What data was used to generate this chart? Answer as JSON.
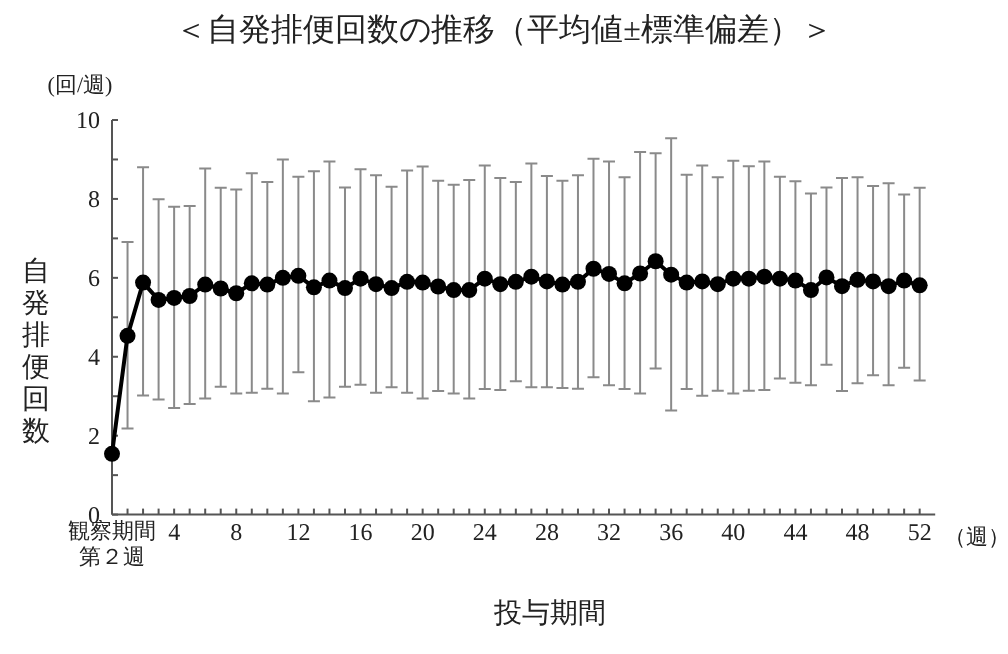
{
  "chart_data": {
    "type": "line",
    "title": "＜自発排便回数の推移（平均値±標準偏差）＞",
    "xlabel": "投与期間",
    "ylabel": "自発排便回数",
    "annotations": [
      "(回/週)",
      "（週）"
    ],
    "xlim": [
      0,
      53
    ],
    "xticks": [
      {
        "value": 0,
        "label": "観察期間第２週"
      },
      {
        "value": 1,
        "label": null
      },
      {
        "value": 2,
        "label": null
      },
      {
        "value": 3,
        "label": null
      },
      4,
      {
        "value": 5,
        "label": null
      },
      {
        "value": 6,
        "label": null
      },
      {
        "value": 7,
        "label": null
      },
      8,
      {
        "value": 9,
        "label": null
      },
      {
        "value": 10,
        "label": null
      },
      {
        "value": 11,
        "label": null
      },
      12,
      {
        "value": 13,
        "label": null
      },
      {
        "value": 14,
        "label": null
      },
      {
        "value": 15,
        "label": null
      },
      16,
      {
        "value": 17,
        "label": null
      },
      {
        "value": 18,
        "label": null
      },
      {
        "value": 19,
        "label": null
      },
      20,
      {
        "value": 21,
        "label": null
      },
      {
        "value": 22,
        "label": null
      },
      {
        "value": 23,
        "label": null
      },
      24,
      {
        "value": 25,
        "label": null
      },
      {
        "value": 26,
        "label": null
      },
      {
        "value": 27,
        "label": null
      },
      28,
      {
        "value": 29,
        "label": null
      },
      {
        "value": 30,
        "label": null
      },
      {
        "value": 31,
        "label": null
      },
      32,
      {
        "value": 33,
        "label": null
      },
      {
        "value": 34,
        "label": null
      },
      {
        "value": 35,
        "label": null
      },
      36,
      {
        "value": 37,
        "label": null
      },
      {
        "value": 38,
        "label": null
      },
      {
        "value": 39,
        "label": null
      },
      40,
      {
        "value": 41,
        "label": null
      },
      {
        "value": 42,
        "label": null
      },
      {
        "value": 43,
        "label": null
      },
      44,
      {
        "value": 45,
        "label": null
      },
      {
        "value": 46,
        "label": null
      },
      {
        "value": 47,
        "label": null
      },
      48,
      {
        "value": 49,
        "label": null
      },
      {
        "value": 50,
        "label": null
      },
      {
        "value": 51,
        "label": null
      },
      52
    ],
    "ylim": [
      0,
      10
    ],
    "yticks": [
      0,
      {
        "value": 1,
        "label": null
      },
      2,
      {
        "value": 3,
        "label": null
      },
      4,
      {
        "value": 5,
        "label": null
      },
      6,
      {
        "value": 7,
        "label": null
      },
      8,
      {
        "value": 9,
        "label": null
      },
      10
    ],
    "marker": "circle",
    "line_style": "solid",
    "x": [
      0,
      1,
      2,
      3,
      4,
      5,
      6,
      7,
      8,
      9,
      10,
      11,
      12,
      13,
      14,
      15,
      16,
      17,
      18,
      19,
      20,
      21,
      22,
      23,
      24,
      25,
      26,
      27,
      28,
      29,
      30,
      31,
      32,
      33,
      34,
      35,
      36,
      37,
      38,
      39,
      40,
      41,
      42,
      43,
      44,
      45,
      46,
      47,
      48,
      49,
      50,
      51,
      52
    ],
    "series": [
      {
        "color": "#000000",
        "values": [
          1.54,
          4.53,
          5.88,
          5.44,
          5.49,
          5.54,
          5.83,
          5.73,
          5.61,
          5.86,
          5.83,
          6.0,
          6.05,
          5.76,
          5.93,
          5.74,
          5.98,
          5.84,
          5.74,
          5.9,
          5.88,
          5.78,
          5.69,
          5.69,
          5.98,
          5.84,
          5.9,
          6.03,
          5.91,
          5.83,
          5.9,
          6.23,
          6.1,
          5.86,
          6.11,
          6.42,
          6.08,
          5.88,
          5.91,
          5.84,
          5.98,
          5.98,
          6.03,
          5.98,
          5.93,
          5.69,
          6.01,
          5.79,
          5.95,
          5.91,
          5.79,
          5.93,
          5.81
        ],
        "errors": [
          null,
          [
            2.18,
            6.91
          ],
          [
            3.02,
            8.8
          ],
          [
            2.92,
            7.99
          ],
          [
            2.7,
            7.8
          ],
          [
            2.8,
            7.82
          ],
          [
            2.94,
            8.77
          ],
          [
            3.24,
            8.28
          ],
          [
            3.07,
            8.24
          ],
          [
            3.09,
            8.65
          ],
          [
            3.19,
            8.43
          ],
          [
            3.07,
            9.0
          ],
          [
            3.61,
            8.56
          ],
          [
            2.87,
            8.7
          ],
          [
            2.97,
            8.95
          ],
          [
            3.24,
            8.29
          ],
          [
            3.29,
            8.75
          ],
          [
            3.09,
            8.6
          ],
          [
            3.23,
            8.31
          ],
          [
            3.09,
            8.72
          ],
          [
            2.94,
            8.82
          ],
          [
            3.13,
            8.46
          ],
          [
            3.07,
            8.36
          ],
          [
            2.94,
            8.48
          ],
          [
            3.18,
            8.85
          ],
          [
            3.16,
            8.53
          ],
          [
            3.38,
            8.43
          ],
          [
            3.23,
            8.9
          ],
          [
            3.23,
            8.58
          ],
          [
            3.21,
            8.46
          ],
          [
            3.19,
            8.6
          ],
          [
            3.48,
            9.02
          ],
          [
            3.28,
            8.95
          ],
          [
            3.18,
            8.55
          ],
          [
            3.07,
            9.19
          ],
          [
            3.7,
            9.16
          ],
          [
            2.64,
            9.54
          ],
          [
            3.18,
            8.61
          ],
          [
            3.01,
            8.85
          ],
          [
            3.14,
            8.55
          ],
          [
            3.07,
            8.97
          ],
          [
            3.14,
            8.83
          ],
          [
            3.16,
            8.95
          ],
          [
            3.45,
            8.56
          ],
          [
            3.34,
            8.45
          ],
          [
            3.28,
            8.14
          ],
          [
            3.8,
            8.29
          ],
          [
            3.13,
            8.53
          ],
          [
            3.33,
            8.55
          ],
          [
            3.53,
            8.33
          ],
          [
            3.28,
            8.4
          ],
          [
            3.72,
            8.11
          ],
          [
            3.4,
            8.28
          ]
        ]
      }
    ]
  }
}
